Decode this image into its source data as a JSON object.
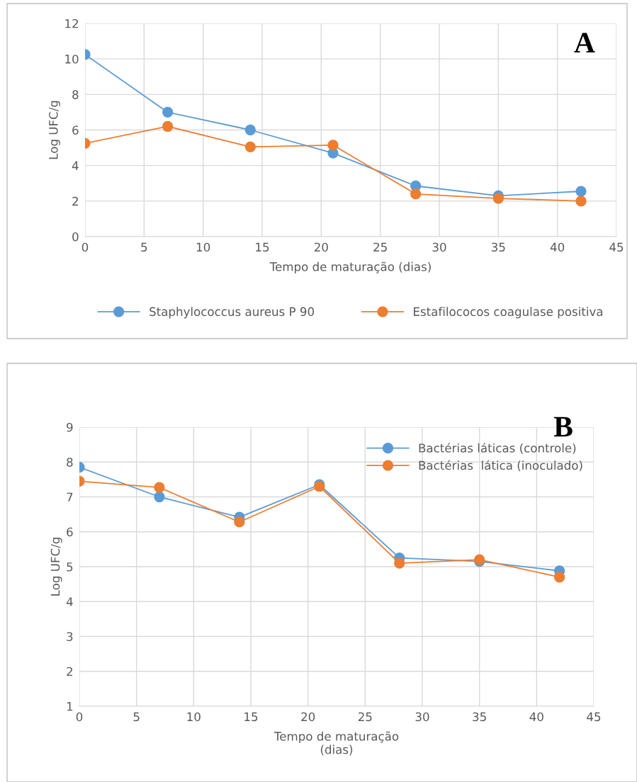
{
  "chart_data": [
    {
      "type": "line",
      "xlabel": "Tempo de maturação (dias)",
      "ylabel": "Log UFC/g",
      "x": [
        0,
        7,
        14,
        21,
        28,
        35,
        42
      ],
      "xlim": [
        0,
        45
      ],
      "xticks": [
        0,
        5,
        10,
        15,
        20,
        25,
        30,
        35,
        40,
        45
      ],
      "ylim": [
        0,
        12
      ],
      "yticks": [
        0,
        2,
        4,
        6,
        8,
        10,
        12
      ],
      "grid": true,
      "legend": "bottom",
      "marker": "circle",
      "annotations": [
        "A"
      ],
      "series": [
        {
          "name": "Staphylococcus aureus P 90",
          "color": "#5b9bd5",
          "values": [
            10.25,
            7.0,
            6.0,
            4.7,
            2.85,
            2.3,
            2.55
          ]
        },
        {
          "name": "Estafilococos coagulase positiva",
          "color": "#ed7d31",
          "values": [
            5.25,
            6.2,
            5.05,
            5.15,
            2.4,
            2.15,
            2.0
          ]
        }
      ]
    },
    {
      "type": "line",
      "xlabel": "Tempo de maturação\n(dias)",
      "ylabel": "Log UFC/g",
      "x": [
        0,
        7,
        14,
        21,
        28,
        35,
        42
      ],
      "xlim": [
        0,
        45
      ],
      "xticks": [
        0,
        5,
        10,
        15,
        20,
        25,
        30,
        35,
        40,
        45
      ],
      "ylim": [
        1,
        9
      ],
      "yticks": [
        1,
        2,
        3,
        4,
        5,
        6,
        7,
        8,
        9
      ],
      "grid": true,
      "legend": "top right",
      "marker": "circle",
      "annotations": [
        "B"
      ],
      "series": [
        {
          "name": "Bactérias láticas (controle)",
          "color": "#5b9bd5",
          "values": [
            7.85,
            7.0,
            6.42,
            7.35,
            5.25,
            5.15,
            4.88
          ]
        },
        {
          "name": "Bactérias  lática (inoculado)",
          "color": "#ed7d31",
          "values": [
            7.45,
            7.27,
            6.28,
            7.3,
            5.1,
            5.2,
            4.7
          ]
        }
      ]
    }
  ]
}
